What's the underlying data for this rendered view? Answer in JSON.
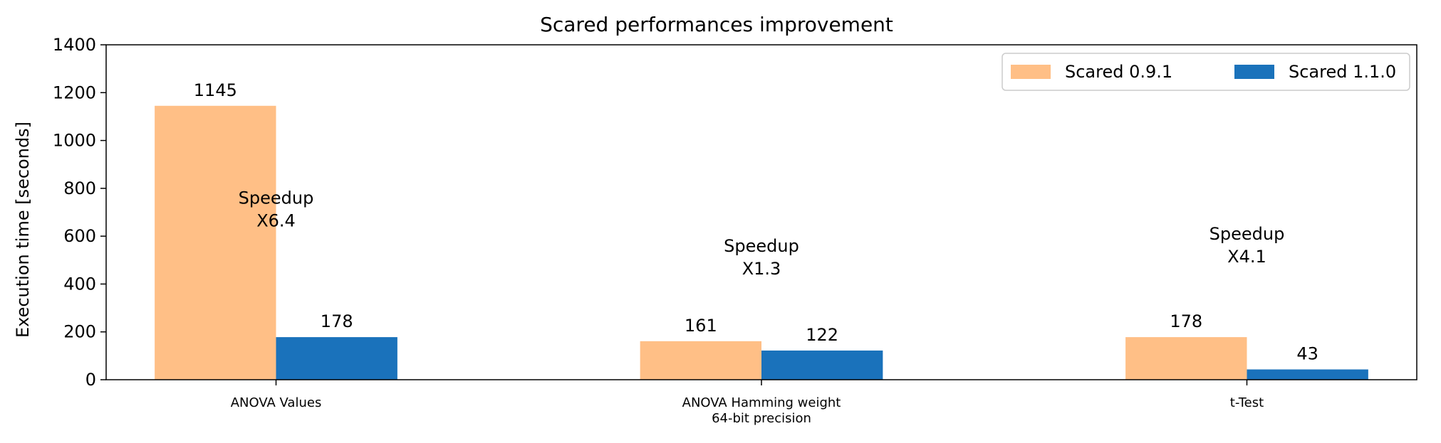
{
  "chart_data": {
    "type": "bar",
    "title": "Scared performances improvement",
    "xlabel": "",
    "ylabel": "Execution time [seconds]",
    "ylim": [
      0,
      1400
    ],
    "yticks": [
      0,
      200,
      400,
      600,
      800,
      1000,
      1200,
      1400
    ],
    "grid": false,
    "legend_position": "top-right",
    "categories": [
      [
        "ANOVA Values"
      ],
      [
        "ANOVA Hamming weight",
        "64-bit precision"
      ],
      [
        "t-Test"
      ]
    ],
    "series": [
      {
        "name": "Scared 0.9.1",
        "color": "#ffbf86",
        "values": [
          1145,
          161,
          178
        ],
        "labels": [
          "1145",
          "161",
          "178"
        ]
      },
      {
        "name": "Scared 1.1.0",
        "color": "#1a72bb",
        "values": [
          178,
          122,
          43
        ],
        "labels": [
          "178",
          "122",
          "43"
        ]
      }
    ],
    "annotations": [
      {
        "category_index": 0,
        "lines": [
          "Speedup",
          "X6.4"
        ],
        "y": 700
      },
      {
        "category_index": 1,
        "lines": [
          "Speedup",
          "X1.3"
        ],
        "y": 500
      },
      {
        "category_index": 2,
        "lines": [
          "Speedup",
          "X4.1"
        ],
        "y": 550
      }
    ]
  }
}
